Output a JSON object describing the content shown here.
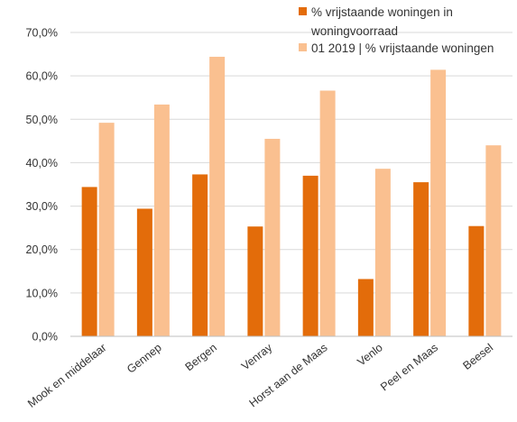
{
  "chart_data": {
    "type": "bar",
    "categories": [
      "Mook en middelaar",
      "Gennep",
      "Bergen",
      "Venray",
      "Horst aan de Maas",
      "Venlo",
      "Peel en Maas",
      "Beesel"
    ],
    "series": [
      {
        "name": "% vrijstaande woningen in woningvoorraad",
        "legend_lines": [
          "% vrijstaande woningen in",
          "woningvoorraad"
        ],
        "color": "#e36c0a",
        "values": [
          34.4,
          29.4,
          37.3,
          25.3,
          37.0,
          13.2,
          35.5,
          25.4
        ]
      },
      {
        "name": "01 2019 | % vrijstaande woningen",
        "legend_lines": [
          "01 2019 | % vrijstaande woningen"
        ],
        "color": "#fac090",
        "values": [
          49.2,
          53.4,
          64.4,
          45.5,
          56.6,
          38.6,
          61.4,
          44.0
        ]
      }
    ],
    "ylim": [
      0,
      70
    ],
    "yticks": [
      "0,0%",
      "10,0%",
      "20,0%",
      "30,0%",
      "40,0%",
      "50,0%",
      "60,0%",
      "70,0%"
    ],
    "grid": true,
    "legend_position": "top-right",
    "xlabel": "",
    "ylabel": "",
    "title": ""
  }
}
